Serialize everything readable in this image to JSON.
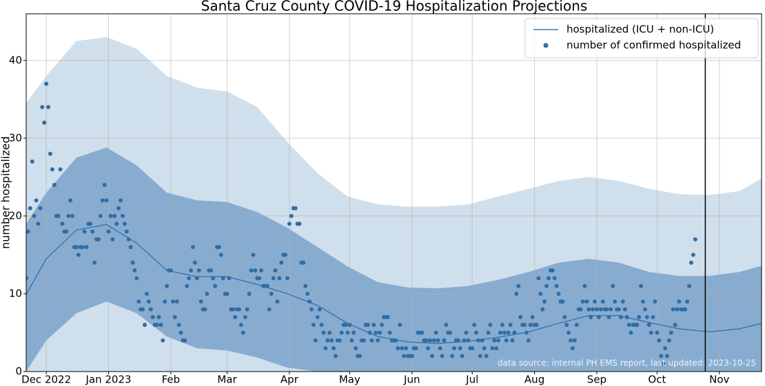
{
  "chart_data": {
    "type": "line",
    "title": "Santa Cruz County COVID-19 Hospitalization Projections",
    "ylabel": "number hospitalized",
    "annotation": "data source: internal PH EMS report, last updated: 2023-10-25",
    "xlim": [
      -10,
      356
    ],
    "ylim": [
      0,
      46
    ],
    "xticks": [
      {
        "value": 0,
        "label": "Dec 2022"
      },
      {
        "value": 31,
        "label": "Jan 2023"
      },
      {
        "value": 62,
        "label": "Feb"
      },
      {
        "value": 90,
        "label": "Mar"
      },
      {
        "value": 121,
        "label": "Apr"
      },
      {
        "value": 151,
        "label": "May"
      },
      {
        "value": 182,
        "label": "Jun"
      },
      {
        "value": 212,
        "label": "Jul"
      },
      {
        "value": 243,
        "label": "Aug"
      },
      {
        "value": 274,
        "label": "Sep"
      },
      {
        "value": 304,
        "label": "Oct"
      },
      {
        "value": 335,
        "label": "Nov"
      }
    ],
    "yticks": [
      0,
      10,
      20,
      30,
      40
    ],
    "grid": true,
    "legend": "upper right",
    "vline": {
      "x": 328,
      "color": "#000000"
    },
    "curve_x": [
      -10,
      0,
      15,
      30,
      45,
      60,
      75,
      90,
      105,
      120,
      135,
      150,
      165,
      180,
      195,
      210,
      225,
      240,
      255,
      270,
      285,
      300,
      315,
      330,
      345,
      356
    ],
    "bands": [
      {
        "color": "#d0dfec",
        "lower": [
          0,
          0,
          0,
          0,
          0,
          0,
          0,
          0,
          0,
          0,
          0,
          0,
          0,
          0,
          0,
          0,
          0,
          0,
          0,
          0,
          0,
          0,
          0,
          0,
          0,
          0
        ],
        "upper": [
          34.5,
          38,
          42.5,
          43,
          41.5,
          38,
          36.5,
          36,
          34,
          29.5,
          25.5,
          22.5,
          21.5,
          21.2,
          21.2,
          21.5,
          22.5,
          23.5,
          24.5,
          25,
          24.5,
          23.5,
          22.8,
          22.7,
          23.2,
          24.8
        ]
      },
      {
        "color": "#88acd0",
        "lower": [
          0,
          4,
          7.5,
          9,
          7.5,
          4.5,
          3,
          2.7,
          1.8,
          0.5,
          0,
          0,
          0,
          0,
          0,
          0,
          0,
          0,
          0,
          0,
          0,
          0,
          0,
          0,
          0,
          0
        ],
        "upper": [
          19,
          23,
          27.5,
          28.8,
          26.5,
          23,
          22,
          21.8,
          20.5,
          18.5,
          16,
          13.5,
          11.5,
          10.8,
          10.7,
          11,
          11.8,
          12.8,
          14,
          14.5,
          14,
          12.8,
          12.3,
          12.3,
          12.8,
          13.6
        ]
      }
    ],
    "series": [
      {
        "name": "hospitalized (ICU + non-ICU)",
        "type": "line",
        "color": "#3a78b0",
        "values": [
          9.9,
          14.5,
          18.2,
          18.9,
          16.5,
          13,
          12.2,
          12.2,
          11.2,
          10,
          8.5,
          6.2,
          4.5,
          3.8,
          3.6,
          3.9,
          4.4,
          5.1,
          6.2,
          7.2,
          7.2,
          6.3,
          5.5,
          5.1,
          5.5,
          6.2
        ]
      },
      {
        "name": "number of confirmed hospitalized",
        "type": "scatter",
        "color": "#2f6ea6",
        "x": [
          -10,
          -9,
          -8,
          -7,
          -6,
          -5,
          -4,
          -3,
          -2,
          -1,
          0,
          1,
          2,
          3,
          4,
          5,
          6,
          7,
          8,
          9,
          10,
          11,
          12,
          13,
          14,
          15,
          16,
          17,
          18,
          19,
          20,
          21,
          22,
          23,
          24,
          25,
          26,
          27,
          28,
          29,
          30,
          31,
          32,
          33,
          34,
          35,
          36,
          37,
          38,
          39,
          40,
          41,
          42,
          43,
          44,
          45,
          46,
          47,
          48,
          49,
          50,
          51,
          52,
          53,
          54,
          55,
          56,
          57,
          58,
          59,
          60,
          61,
          62,
          63,
          64,
          65,
          66,
          67,
          68,
          69,
          70,
          71,
          72,
          73,
          74,
          75,
          76,
          77,
          78,
          79,
          80,
          81,
          82,
          83,
          84,
          85,
          86,
          87,
          88,
          89,
          90,
          91,
          92,
          93,
          94,
          95,
          96,
          97,
          98,
          99,
          100,
          101,
          102,
          103,
          104,
          105,
          106,
          107,
          108,
          109,
          110,
          111,
          112,
          113,
          114,
          115,
          116,
          117,
          118,
          119,
          120,
          121,
          122,
          123,
          124,
          125,
          126,
          127,
          128,
          129,
          130,
          131,
          132,
          133,
          134,
          135,
          136,
          137,
          138,
          139,
          140,
          141,
          142,
          143,
          144,
          145,
          146,
          147,
          148,
          149,
          150,
          151,
          152,
          153,
          154,
          155,
          156,
          157,
          158,
          159,
          160,
          161,
          162,
          163,
          164,
          165,
          166,
          167,
          168,
          169,
          170,
          171,
          172,
          173,
          174,
          175,
          176,
          177,
          178,
          179,
          180,
          181,
          182,
          183,
          184,
          185,
          186,
          187,
          188,
          189,
          190,
          191,
          192,
          193,
          194,
          195,
          196,
          197,
          198,
          199,
          200,
          201,
          202,
          203,
          204,
          205,
          206,
          207,
          208,
          209,
          210,
          211,
          212,
          213,
          214,
          215,
          216,
          217,
          218,
          219,
          220,
          221,
          222,
          223,
          224,
          225,
          226,
          227,
          228,
          229,
          230,
          231,
          232,
          233,
          234,
          235,
          236,
          237,
          238,
          239,
          240,
          241,
          242,
          243,
          244,
          245,
          246,
          247,
          248,
          249,
          250,
          251,
          252,
          253,
          254,
          255,
          256,
          257,
          258,
          259,
          260,
          261,
          262,
          263,
          264,
          265,
          266,
          267,
          268,
          269,
          270,
          271,
          272,
          273,
          274,
          275,
          276,
          277,
          278,
          279,
          280,
          281,
          282,
          283,
          284,
          285,
          286,
          287,
          288,
          289,
          290,
          291,
          292,
          293,
          294,
          295,
          296,
          297,
          298,
          299,
          300,
          301,
          302,
          303,
          304,
          305,
          306,
          307,
          308,
          309,
          310,
          311,
          312,
          313,
          314,
          315,
          316,
          317,
          318,
          319,
          320,
          321,
          322,
          323
        ],
        "values": [
          12,
          18,
          21,
          27,
          20,
          22,
          19,
          21,
          34,
          32,
          37,
          34,
          28,
          26,
          24,
          20,
          20,
          26,
          19,
          18,
          18,
          20,
          22,
          20,
          16,
          16,
          15,
          16,
          16,
          18,
          16,
          19,
          19,
          18,
          14,
          17,
          17,
          20,
          22,
          24,
          22,
          18,
          20,
          17,
          20,
          19,
          21,
          22,
          20,
          19,
          18,
          17,
          16,
          14,
          13,
          12,
          9,
          8,
          8,
          6,
          10,
          9,
          8,
          7,
          6,
          6,
          7,
          6,
          4,
          9,
          11,
          13,
          13,
          9,
          7,
          9,
          6,
          5,
          4,
          4,
          11,
          12,
          13,
          16,
          14,
          12,
          13,
          9,
          8,
          8,
          10,
          13,
          13,
          12,
          11,
          16,
          16,
          15,
          12,
          10,
          10,
          12,
          8,
          8,
          7,
          8,
          8,
          6,
          5,
          7,
          8,
          10,
          13,
          15,
          13,
          12,
          12,
          13,
          11,
          11,
          11,
          8,
          10,
          12,
          13,
          9,
          12,
          14,
          15,
          15,
          12,
          19,
          20,
          21,
          21,
          19,
          19,
          14,
          14,
          11,
          10,
          9,
          8,
          6,
          4,
          7,
          8,
          6,
          5,
          3,
          4,
          5,
          4,
          3,
          2,
          4,
          4,
          5,
          6,
          6,
          5,
          6,
          4,
          5,
          3,
          2,
          2,
          4,
          4,
          6,
          6,
          5,
          4,
          6,
          5,
          4,
          5,
          6,
          7,
          7,
          7,
          5,
          4,
          4,
          4,
          3,
          6,
          3,
          2,
          3,
          2,
          2,
          2,
          3,
          3,
          5,
          5,
          5,
          4,
          4,
          3,
          4,
          2,
          4,
          5,
          4,
          3,
          2,
          4,
          6,
          5,
          5,
          2,
          3,
          4,
          4,
          3,
          2,
          4,
          5,
          4,
          3,
          3,
          6,
          5,
          4,
          2,
          4,
          3,
          2,
          5,
          6,
          3,
          4,
          3,
          4,
          5,
          6,
          5,
          4,
          5,
          6,
          4,
          5,
          10,
          11,
          7,
          6,
          6,
          5,
          4,
          6,
          7,
          6,
          6,
          12,
          10,
          8,
          9,
          11,
          12,
          13,
          13,
          12,
          11,
          10,
          9,
          9,
          7,
          6,
          5,
          4,
          3,
          4,
          6,
          8,
          8,
          9,
          11,
          9,
          8,
          7,
          8,
          9,
          8,
          7,
          8,
          9,
          8,
          8,
          7,
          8,
          11,
          9,
          8,
          8,
          7,
          9,
          8,
          7,
          6,
          5,
          6,
          6,
          6,
          7,
          11,
          9,
          8,
          7,
          6,
          5,
          7,
          9,
          5,
          4,
          2,
          1,
          3,
          2,
          4,
          5,
          8,
          6,
          8,
          9,
          8,
          8,
          8,
          9,
          11,
          14,
          15,
          17
        ]
      }
    ]
  }
}
